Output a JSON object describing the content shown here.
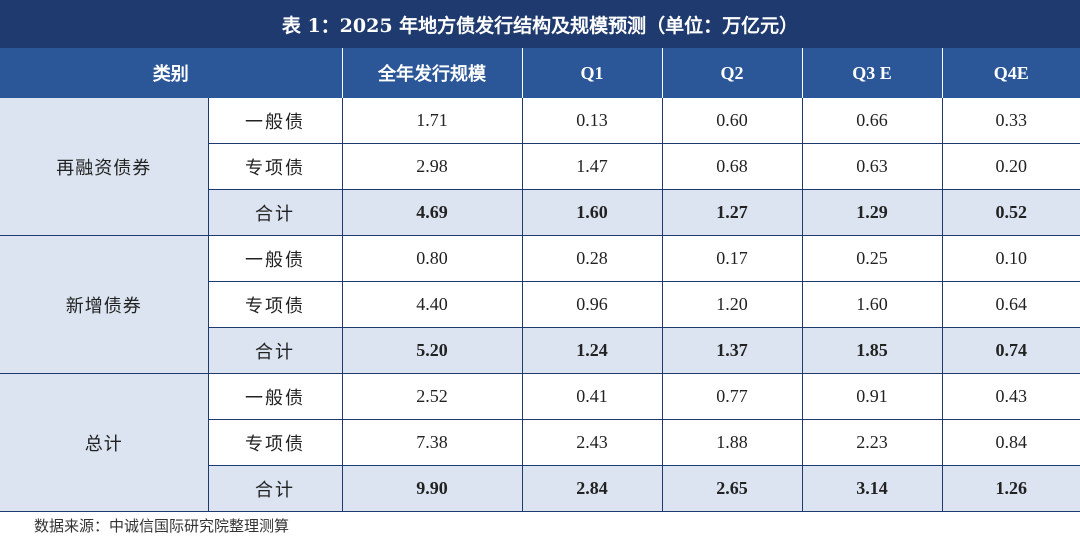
{
  "title": "表 1：2025 年地方债发行结构及规模预测（单位：万亿元）",
  "headers": [
    "类别",
    "全年发行规模",
    "Q1",
    "Q2",
    "Q3 E",
    "Q4E"
  ],
  "groups": [
    {
      "name": "再融资债券",
      "rows": [
        {
          "label": "一般债",
          "values": [
            "1.71",
            "0.13",
            "0.60",
            "0.66",
            "0.33"
          ]
        },
        {
          "label": "专项债",
          "values": [
            "2.98",
            "1.47",
            "0.68",
            "0.63",
            "0.20"
          ]
        },
        {
          "label": "合计",
          "values": [
            "4.69",
            "1.60",
            "1.27",
            "1.29",
            "0.52"
          ]
        }
      ]
    },
    {
      "name": "新增债券",
      "rows": [
        {
          "label": "一般债",
          "values": [
            "0.80",
            "0.28",
            "0.17",
            "0.25",
            "0.10"
          ]
        },
        {
          "label": "专项债",
          "values": [
            "4.40",
            "0.96",
            "1.20",
            "1.60",
            "0.64"
          ]
        },
        {
          "label": "合计",
          "values": [
            "5.20",
            "1.24",
            "1.37",
            "1.85",
            "0.74"
          ]
        }
      ]
    },
    {
      "name": "总计",
      "rows": [
        {
          "label": "一般债",
          "values": [
            "2.52",
            "0.41",
            "0.77",
            "0.91",
            "0.43"
          ]
        },
        {
          "label": "专项债",
          "values": [
            "7.38",
            "2.43",
            "1.88",
            "2.23",
            "0.84"
          ]
        },
        {
          "label": "合计",
          "values": [
            "9.90",
            "2.84",
            "2.65",
            "3.14",
            "1.26"
          ]
        }
      ]
    }
  ],
  "source": "数据来源：中诚信国际研究院整理测算",
  "colors": {
    "title_bg": "#1f3a6e",
    "header_bg": "#2b5798",
    "shade": "#dbe4f0"
  }
}
